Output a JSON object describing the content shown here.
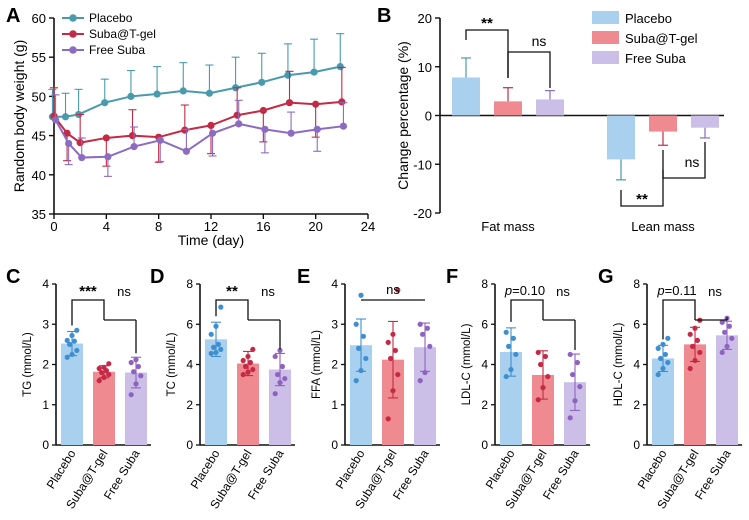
{
  "colors": {
    "placebo": "#4a9aae",
    "suba_tgel": "#c42a45",
    "free_suba": "#8b6cc0",
    "bar_placebo": "#a9d0ef",
    "bar_suba_tgel": "#ee8a90",
    "bar_free_suba": "#cbbfe8",
    "dot_placebo": "#3f8fd0",
    "dot_suba_tgel": "#c42a45",
    "dot_free_suba": "#8f62c0"
  },
  "chart_data": [
    {
      "panel": "A",
      "type": "line",
      "xlabel": "Time (day)",
      "ylabel": "Random body weight (g)",
      "xlim": [
        0,
        24
      ],
      "ylim": [
        35,
        60
      ],
      "xticks": [
        0,
        4,
        8,
        12,
        16,
        20,
        24
      ],
      "yticks": [
        35,
        40,
        45,
        50,
        55,
        60
      ],
      "legend": [
        "Placebo",
        "Suba@T-gel",
        "Free Suba"
      ],
      "x": [
        0,
        1,
        2,
        4,
        6,
        8,
        10,
        12,
        14,
        16,
        18,
        20,
        22
      ],
      "series": [
        {
          "name": "Placebo",
          "values": [
            47.4,
            47.4,
            47.7,
            49.2,
            50.0,
            50.3,
            50.7,
            50.4,
            51.1,
            51.8,
            52.7,
            53.1,
            53.8
          ],
          "err": [
            3.5,
            3.0,
            3.2,
            3.0,
            3.3,
            3.5,
            3.6,
            3.6,
            3.9,
            3.7,
            4.0,
            4.2,
            4.2
          ]
        },
        {
          "name": "Suba@T-gel",
          "values": [
            47.5,
            45.3,
            44.1,
            44.7,
            45.0,
            44.8,
            45.7,
            46.3,
            47.6,
            48.2,
            49.2,
            49.0,
            49.3
          ],
          "err": [
            3.6,
            3.5,
            3.6,
            3.6,
            3.3,
            3.2,
            3.2,
            3.6,
            3.5,
            4.0,
            4.0,
            4.2,
            4.4
          ]
        },
        {
          "name": "Free Suba",
          "values": [
            47.0,
            44.0,
            42.2,
            42.3,
            43.6,
            44.4,
            43.0,
            45.3,
            46.5,
            45.8,
            45.3,
            45.8,
            46.2
          ],
          "err": [
            3.2,
            2.7,
            2.5,
            2.5,
            2.5,
            2.7,
            2.8,
            2.9,
            3.0,
            3.0,
            2.7,
            2.8,
            3.0
          ]
        }
      ]
    },
    {
      "panel": "B",
      "type": "bar",
      "ylabel": "Change percentage (%)",
      "ylim": [
        -20,
        20
      ],
      "yticks": [
        -20,
        -10,
        0,
        10,
        20
      ],
      "categories": [
        "Fat mass",
        "Lean mass"
      ],
      "legend": [
        "Placebo",
        "Suba@T-gel",
        "Free Suba"
      ],
      "series": [
        {
          "name": "Placebo",
          "values": [
            7.8,
            -9.0
          ],
          "err": [
            4.0,
            4.2
          ]
        },
        {
          "name": "Suba@T-gel",
          "values": [
            2.9,
            -3.3
          ],
          "err": [
            2.8,
            2.8
          ]
        },
        {
          "name": "Free Suba",
          "values": [
            3.3,
            -2.5
          ],
          "err": [
            1.8,
            2.1
          ]
        }
      ],
      "annotations": [
        "**",
        "ns",
        "**",
        "ns"
      ]
    },
    {
      "panel": "C",
      "type": "bar",
      "ylabel": "TG (mmol/L)",
      "ylim": [
        0,
        4
      ],
      "yticks": [
        0,
        1,
        2,
        3,
        4
      ],
      "categories": [
        "Placebo",
        "Suba@T-gel",
        "Free Suba"
      ],
      "values": [
        2.52,
        1.82,
        1.8
      ],
      "err": [
        0.3,
        0.15,
        0.38
      ],
      "points": [
        [
          2.18,
          2.25,
          2.35,
          2.5,
          2.58,
          2.6,
          2.72,
          2.85
        ],
        [
          1.6,
          1.68,
          1.75,
          1.8,
          1.85,
          1.9,
          1.93,
          2.02
        ],
        [
          1.25,
          1.52,
          1.72,
          1.82,
          1.95,
          2.05,
          2.12
        ]
      ],
      "annotations": [
        "***",
        "ns"
      ]
    },
    {
      "panel": "D",
      "type": "bar",
      "ylabel": "TC (mmol/L)",
      "ylim": [
        0,
        8
      ],
      "yticks": [
        0,
        2,
        4,
        6,
        8
      ],
      "categories": [
        "Placebo",
        "Suba@T-gel",
        "Free Suba"
      ],
      "values": [
        5.25,
        4.05,
        3.75
      ],
      "err": [
        0.85,
        0.6,
        0.8
      ],
      "points": [
        [
          4.55,
          4.6,
          4.75,
          4.85,
          5.0,
          5.5,
          5.9,
          6.85
        ],
        [
          3.5,
          3.62,
          3.75,
          3.9,
          4.1,
          4.2,
          4.4,
          4.75
        ],
        [
          2.55,
          3.1,
          3.3,
          3.5,
          3.9,
          4.4,
          4.7
        ]
      ],
      "annotations": [
        "**",
        "ns"
      ]
    },
    {
      "panel": "E",
      "type": "bar",
      "ylabel": "FFA (mmol/L)",
      "ylim": [
        0,
        4
      ],
      "yticks": [
        0,
        1,
        2,
        3,
        4
      ],
      "categories": [
        "Placebo",
        "Suba@T-gel",
        "Free Suba"
      ],
      "values": [
        2.48,
        2.12,
        2.43
      ],
      "err": [
        0.65,
        0.95,
        0.6
      ],
      "points": [
        [
          1.6,
          1.85,
          2.15,
          2.4,
          2.7,
          3.0,
          3.72
        ],
        [
          0.65,
          1.35,
          1.75,
          2.15,
          2.35,
          2.55,
          2.75,
          3.85
        ],
        [
          1.6,
          1.8,
          2.45,
          2.75,
          2.9,
          3.0
        ]
      ],
      "annotations": [
        "ns"
      ]
    },
    {
      "panel": "F",
      "type": "bar",
      "ylabel": "LDL-C (mmol/L)",
      "ylim": [
        0,
        8
      ],
      "yticks": [
        0,
        2,
        4,
        6,
        8
      ],
      "categories": [
        "Placebo",
        "Suba@T-gel",
        "Free Suba"
      ],
      "values": [
        4.62,
        3.48,
        3.12
      ],
      "err": [
        1.2,
        1.2,
        1.4
      ],
      "points": [
        [
          3.4,
          3.75,
          4.5,
          4.9,
          5.3,
          5.6
        ],
        [
          2.25,
          2.85,
          3.4,
          4.0,
          4.4,
          4.6
        ],
        [
          1.35,
          2.2,
          2.9,
          3.5,
          4.1,
          4.5
        ]
      ],
      "annotations": [
        "p=0.10",
        "ns"
      ]
    },
    {
      "panel": "G",
      "type": "bar",
      "ylabel": "HDL-C (mmol/L)",
      "ylim": [
        0,
        8
      ],
      "yticks": [
        0,
        2,
        4,
        6,
        8
      ],
      "categories": [
        "Placebo",
        "Suba@T-gel",
        "Free Suba"
      ],
      "values": [
        4.3,
        5.0,
        5.45
      ],
      "err": [
        0.65,
        0.85,
        0.7
      ],
      "points": [
        [
          3.5,
          3.8,
          4.1,
          4.3,
          4.5,
          4.8,
          5.0,
          5.3
        ],
        [
          3.8,
          4.2,
          4.6,
          4.9,
          5.2,
          5.5,
          5.8,
          6.2
        ],
        [
          4.6,
          4.9,
          5.3,
          5.6,
          5.9,
          6.1,
          6.3
        ]
      ],
      "annotations": [
        "p=0.11",
        "ns"
      ]
    }
  ]
}
